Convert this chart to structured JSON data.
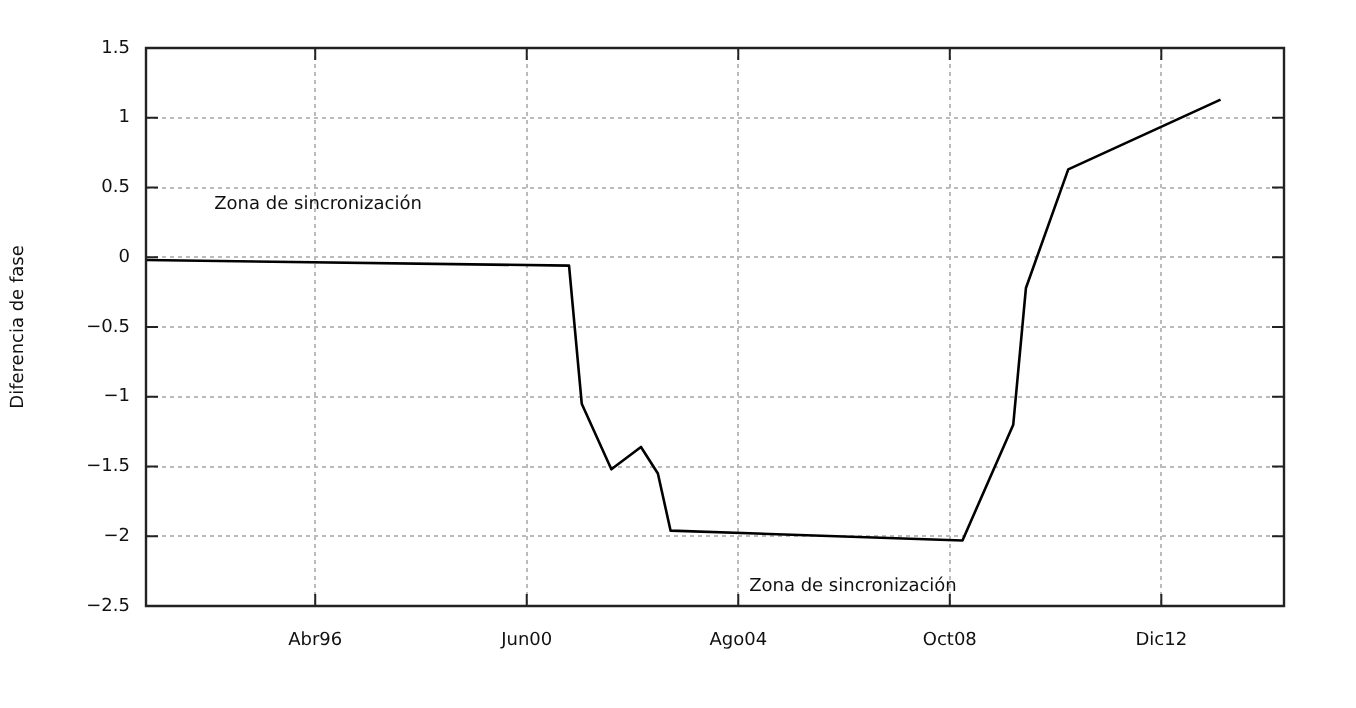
{
  "chart_data": {
    "type": "line",
    "ylabel": "Diferencia de fase",
    "x": [
      "1992-12",
      "2001-04",
      "2001-07",
      "2002-02",
      "2002-09",
      "2003-01",
      "2003-04",
      "2009-01",
      "2010-01",
      "2010-04",
      "2011-02",
      "2014-02"
    ],
    "series": [
      {
        "color": "#000000",
        "values": [
          -0.02,
          -0.06,
          -1.05,
          -1.52,
          -1.36,
          -1.55,
          -1.96,
          -2.03,
          -1.2,
          -0.22,
          0.63,
          1.13
        ]
      }
    ],
    "xlim": [
      "1992-12",
      "2015-05"
    ],
    "xticks": [
      {
        "value": "1996-04",
        "label": "Abr96"
      },
      {
        "value": "2000-06",
        "label": "Jun00"
      },
      {
        "value": "2004-08",
        "label": "Ago04"
      },
      {
        "value": "2008-10",
        "label": "Oct08"
      },
      {
        "value": "2012-12",
        "label": "Dic12"
      }
    ],
    "ylim": [
      -2.5,
      1.5
    ],
    "yticks": [
      -2.5,
      -2,
      -1.5,
      -1,
      -0.5,
      0,
      0.5,
      1,
      1.5
    ],
    "annotations": [
      "Zona de sincronización",
      "Zona de sincronización"
    ],
    "grid": true,
    "legend": false,
    "marker": "none",
    "line_style": "solid"
  }
}
